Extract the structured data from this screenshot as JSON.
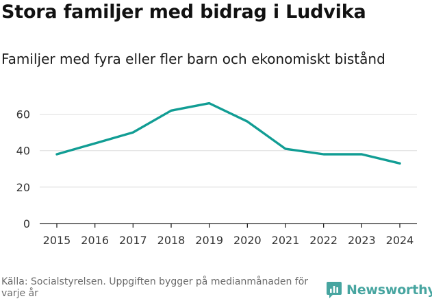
{
  "header": {
    "title": "Stora familjer med bidrag i Ludvika",
    "subtitle": "Familjer med fyra eller fler barn och ekonomiskt bistånd"
  },
  "footer": {
    "source": "Källa: Socialstyrelsen. Uppgiften bygger på medianmånaden för varje år",
    "brand": "Newsworthy"
  },
  "colors": {
    "line": "#119d94",
    "grid": "#dddddd",
    "axis": "#222222",
    "brand": "#47a5a0"
  },
  "chart_data": {
    "type": "line",
    "title": "Stora familjer med bidrag i Ludvika",
    "subtitle": "Familjer med fyra eller fler barn och ekonomiskt bistånd",
    "xlabel": "",
    "ylabel": "",
    "x": [
      "2015",
      "2016",
      "2017",
      "2018",
      "2019",
      "2020",
      "2021",
      "2022",
      "2023",
      "2024"
    ],
    "series": [
      {
        "name": "Familjer med fyra eller fler barn och ekonomiskt bistånd",
        "values": [
          38,
          44,
          50,
          62,
          66,
          56,
          41,
          38,
          38,
          33
        ]
      }
    ],
    "ylim": [
      0,
      70
    ],
    "yticks": [
      0,
      20,
      40,
      60
    ],
    "grid": true
  }
}
